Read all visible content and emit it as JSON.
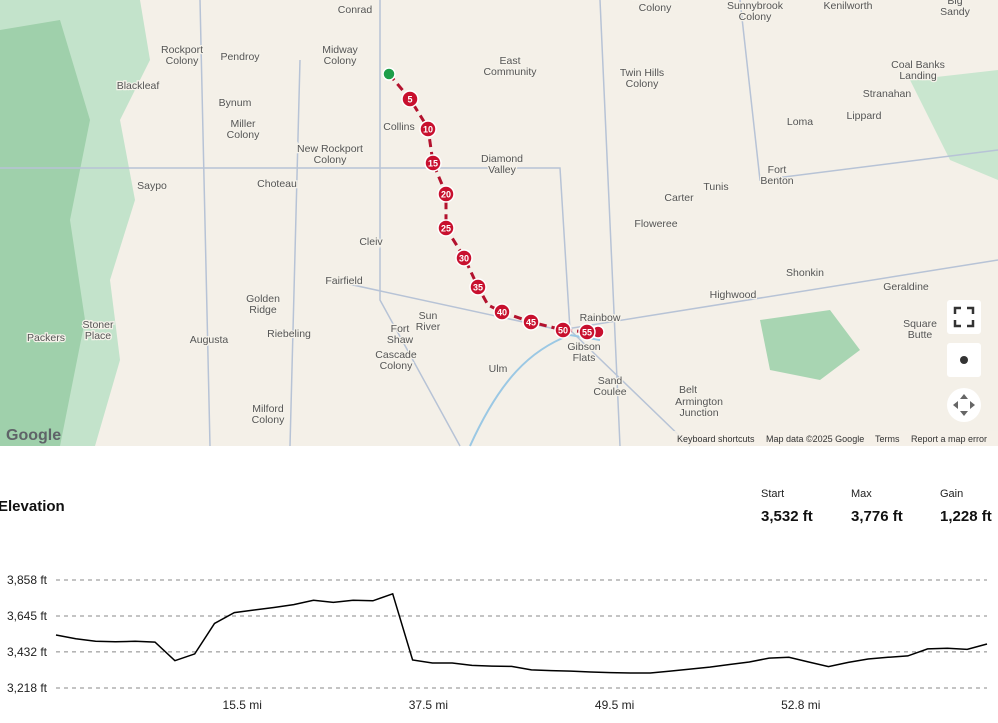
{
  "map": {
    "labels": [
      "Conrad",
      "Midway Colony",
      "East Community",
      "Rockport Colony",
      "Pendroy",
      "Blackleaf",
      "Bynum",
      "Miller Colony",
      "Collins",
      "New Rockport Colony",
      "Diamond Valley",
      "Choteau",
      "Saypo",
      "Cleiv",
      "Fairfield",
      "Golden Ridge",
      "Augusta",
      "Riebeling",
      "Stoner Place",
      "Packers",
      "Sun River",
      "Fort Shaw",
      "Cascade Colony",
      "Ulm",
      "Milford Colony",
      "Twin Hills Colony",
      "Sunnybrook Colony",
      "Riverview Colony",
      "Kenilworth",
      "Big Sandy",
      "Coal Banks Landing",
      "Stranahan",
      "Lippard",
      "Loma",
      "Fort Benton",
      "Tunis",
      "Carter",
      "Floweree",
      "Shonkin",
      "Highwood",
      "Geraldine",
      "Square Butte",
      "Rainbow",
      "Gibson Flats",
      "Sand Coulee",
      "Belt",
      "Armington Junction"
    ],
    "route_markers": [
      "5",
      "10",
      "15",
      "20",
      "25",
      "30",
      "35",
      "40",
      "45",
      "50",
      "55"
    ],
    "logo": "Google",
    "attribution": [
      "Keyboard shortcuts",
      "Map data ©2025 Google",
      "Terms",
      "Report a map error"
    ]
  },
  "elevation": {
    "title": "Elevation",
    "stats": [
      {
        "label": "Start",
        "value": "3,532 ft"
      },
      {
        "label": "Max",
        "value": "3,776 ft"
      },
      {
        "label": "Gain",
        "value": "1,228 ft"
      }
    ]
  },
  "chart_data": {
    "type": "line",
    "color": "#000000",
    "values": [
      3532,
      3510,
      3495,
      3492,
      3495,
      3490,
      3380,
      3420,
      3600,
      3665,
      3680,
      3695,
      3712,
      3738,
      3725,
      3738,
      3735,
      3776,
      3384,
      3366,
      3366,
      3352,
      3348,
      3346,
      3325,
      3321,
      3318,
      3313,
      3309,
      3307,
      3307,
      3318,
      3330,
      3342,
      3357,
      3372,
      3395,
      3400,
      3372,
      3345,
      3370,
      3390,
      3400,
      3408,
      3450,
      3453,
      3447,
      3479
    ],
    "ylim": [
      3218,
      3858
    ],
    "yticks": [
      {
        "value": 3218,
        "label": "3,218 ft"
      },
      {
        "value": 3432,
        "label": "3,432 ft"
      },
      {
        "value": 3645,
        "label": "3,645 ft"
      },
      {
        "value": 3858,
        "label": "3,858 ft"
      }
    ],
    "xtick_labels": [
      "15.5 mi",
      "37.5 mi",
      "49.5 mi",
      "52.8 mi"
    ],
    "grid": true
  }
}
